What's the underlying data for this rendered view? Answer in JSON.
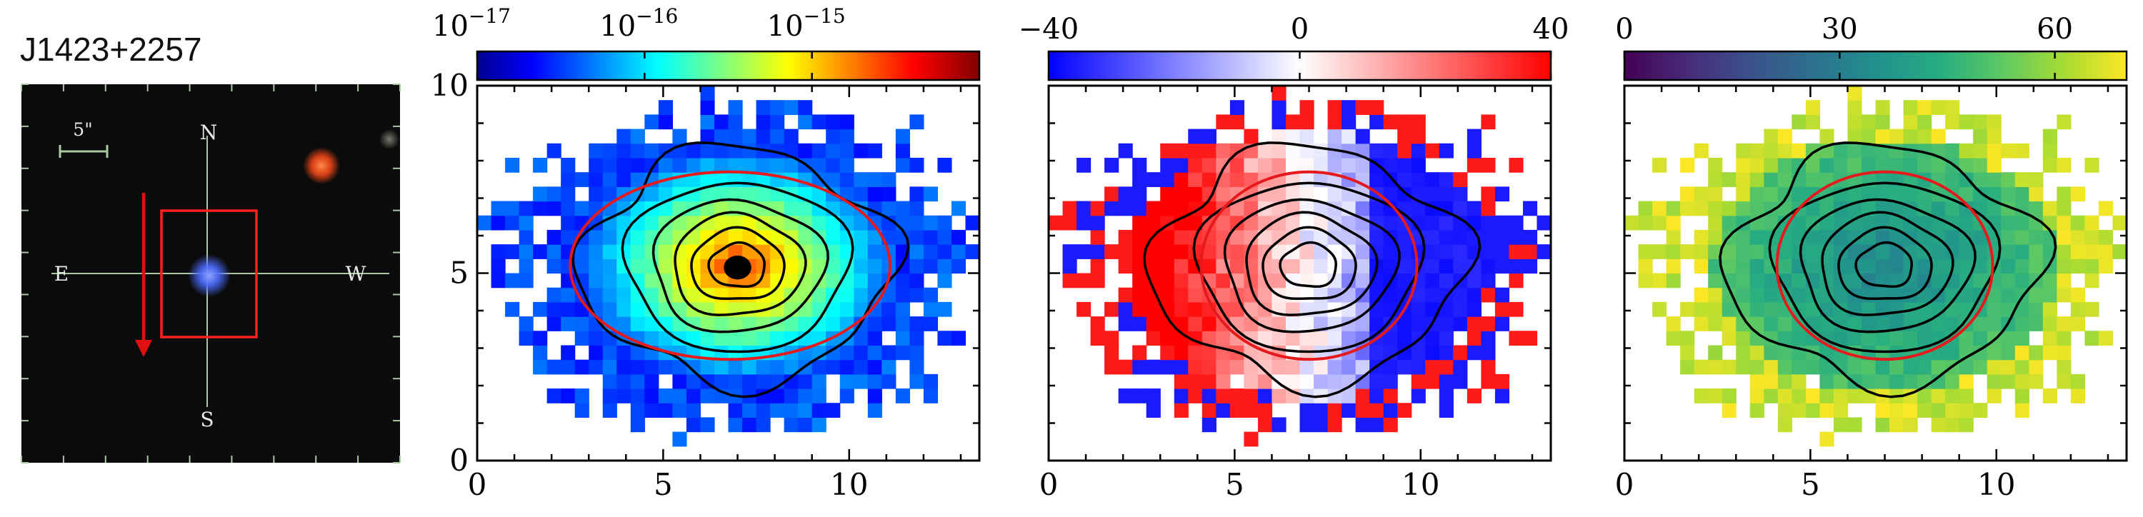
{
  "object_name": "J1423+2257",
  "thumbnail": {
    "scale_label": "5\"",
    "compass": {
      "north": "N",
      "south": "S",
      "east": "E",
      "west": "W"
    },
    "colors": {
      "background": "#0b0b0b",
      "crosshair": "#a8c8a0",
      "box": "#ff2020",
      "arrow": "#e01010",
      "source": "#4d6bff",
      "neighbor": "#ff5a2a"
    }
  },
  "chart_data": [
    {
      "type": "heatmap",
      "panel": "flux",
      "xlim": [
        0,
        13.5
      ],
      "ylim": [
        0,
        10
      ],
      "xticks": [
        0,
        5,
        10
      ],
      "yticks": [
        0,
        5,
        10
      ],
      "colorbar": {
        "scale": "log",
        "range": [
          1e-17,
          1e-14
        ],
        "tick_labels": [
          "10^{-17}",
          "10^{-16}",
          "10^{-15}"
        ],
        "colormap": "jet"
      },
      "source_center": [
        7,
        5.2
      ],
      "contour_levels": 6,
      "ellipse": {
        "center": [
          6.8,
          5.2
        ],
        "semi_axes": [
          4.3,
          2.5
        ],
        "color": "#e41a1c"
      }
    },
    {
      "type": "heatmap",
      "panel": "velocity",
      "xlim": [
        0,
        13.5
      ],
      "ylim": [
        0,
        10
      ],
      "xticks": [
        0,
        5,
        10
      ],
      "colorbar": {
        "scale": "linear",
        "range": [
          -40,
          40
        ],
        "tick_labels": [
          "−40",
          "0",
          "40"
        ],
        "colormap": "bwr"
      },
      "ellipse": {
        "center": [
          7,
          5.2
        ],
        "semi_axes": [
          2.9,
          2.5
        ],
        "color": "#e41a1c"
      }
    },
    {
      "type": "heatmap",
      "panel": "dispersion",
      "xlim": [
        0,
        13.5
      ],
      "ylim": [
        0,
        10
      ],
      "xticks": [
        0,
        5,
        10
      ],
      "colorbar": {
        "scale": "linear",
        "range": [
          0,
          70
        ],
        "tick_labels": [
          "0",
          "30",
          "60"
        ],
        "colormap": "viridis"
      },
      "ellipse": {
        "center": [
          7,
          5.2
        ],
        "semi_axes": [
          2.9,
          2.5
        ],
        "color": "#e41a1c"
      }
    }
  ]
}
